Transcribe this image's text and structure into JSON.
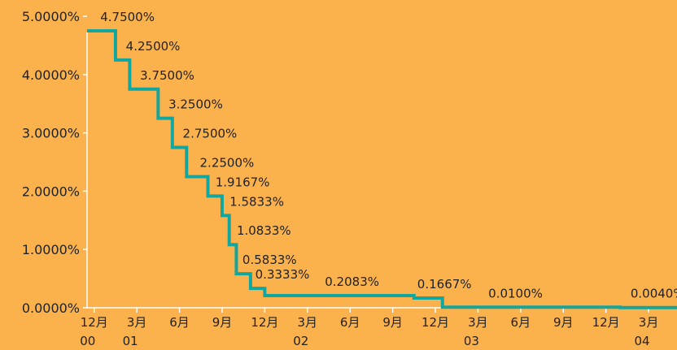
{
  "chart_data": {
    "type": "line",
    "step": true,
    "background_color": "#FBB24D",
    "line_color": "#13A69E",
    "axis_color": "#FFFFFF",
    "grid": false,
    "legend": "none",
    "title": "",
    "xlabel": "",
    "ylabel": "",
    "ylim": [
      0,
      5
    ],
    "y_ticks": [
      "0.0000%",
      "1.0000%",
      "2.0000%",
      "3.0000%",
      "4.0000%",
      "5.0000%"
    ],
    "x_ticks": [
      {
        "month": "12月",
        "year": "00",
        "m": 12
      },
      {
        "month": "3月",
        "year": "01",
        "m": 15
      },
      {
        "month": "6月",
        "year": "",
        "m": 18
      },
      {
        "month": "9月",
        "year": "",
        "m": 21
      },
      {
        "month": "12月",
        "year": "",
        "m": 24
      },
      {
        "month": "3月",
        "year": "02",
        "m": 27
      },
      {
        "month": "6月",
        "year": "",
        "m": 30
      },
      {
        "month": "9月",
        "year": "",
        "m": 33
      },
      {
        "month": "12月",
        "year": "",
        "m": 36
      },
      {
        "month": "3月",
        "year": "03",
        "m": 39
      },
      {
        "month": "6月",
        "year": "",
        "m": 42
      },
      {
        "month": "9月",
        "year": "",
        "m": 45
      },
      {
        "month": "12月",
        "year": "",
        "m": 48
      },
      {
        "month": "3月",
        "year": "04",
        "m": 51
      }
    ],
    "x_range": [
      11.5,
      53
    ],
    "points": [
      {
        "m": 11.5,
        "y": 4.75
      },
      {
        "m": 13.5,
        "y": 4.25
      },
      {
        "m": 14.5,
        "y": 3.75
      },
      {
        "m": 16.5,
        "y": 3.25
      },
      {
        "m": 17.5,
        "y": 2.75
      },
      {
        "m": 18.5,
        "y": 2.25
      },
      {
        "m": 20.0,
        "y": 1.9167
      },
      {
        "m": 21.0,
        "y": 1.5833
      },
      {
        "m": 21.5,
        "y": 1.0833
      },
      {
        "m": 22.0,
        "y": 0.5833
      },
      {
        "m": 23.0,
        "y": 0.3333
      },
      {
        "m": 24.0,
        "y": 0.2083
      },
      {
        "m": 34.5,
        "y": 0.1667
      },
      {
        "m": 36.5,
        "y": 0.01
      },
      {
        "m": 49.0,
        "y": 0.004
      },
      {
        "m": 53.0,
        "y": 0.004
      }
    ],
    "labels": [
      {
        "text": "4.7500%",
        "m": 12.2,
        "y": 4.75
      },
      {
        "text": "4.2500%",
        "m": 14.0,
        "y": 4.25
      },
      {
        "text": "3.7500%",
        "m": 15.0,
        "y": 3.75
      },
      {
        "text": "3.2500%",
        "m": 17.0,
        "y": 3.25
      },
      {
        "text": "2.7500%",
        "m": 18.0,
        "y": 2.75
      },
      {
        "text": "2.2500%",
        "m": 19.2,
        "y": 2.25
      },
      {
        "text": "1.9167%",
        "m": 20.3,
        "y": 1.9167
      },
      {
        "text": "1.5833%",
        "m": 21.3,
        "y": 1.5833
      },
      {
        "text": "1.0833%",
        "m": 21.8,
        "y": 1.0833
      },
      {
        "text": "0.5833%",
        "m": 22.2,
        "y": 0.5833
      },
      {
        "text": "0.3333%",
        "m": 23.1,
        "y": 0.3333
      },
      {
        "text": "0.2083%",
        "m": 28.0,
        "y": 0.2083
      },
      {
        "text": "0.1667%",
        "m": 34.5,
        "y": 0.1667
      },
      {
        "text": "0.0100%",
        "m": 39.5,
        "y": 0.01
      },
      {
        "text": "0.0040%",
        "m": 49.5,
        "y": 0.004
      }
    ]
  }
}
